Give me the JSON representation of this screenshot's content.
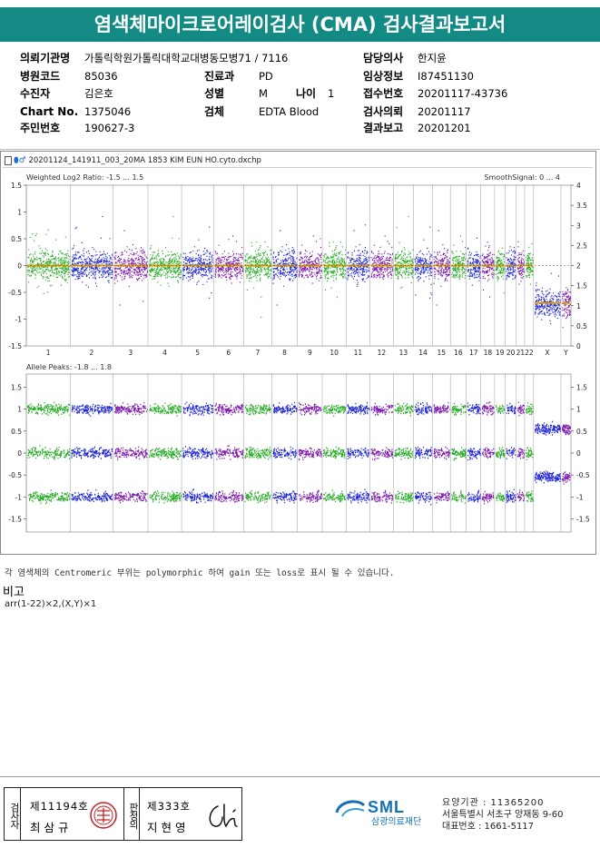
{
  "report": {
    "title": "염색체마이크로어레이검사 (CMA) 검사결과보고서"
  },
  "patient_info": {
    "col1": [
      {
        "label": "의뢰기관명",
        "value": "가톨릭학원가톨릭대학교대병동모병71 / 7116"
      },
      {
        "label": "병원코드",
        "value": "85036"
      },
      {
        "label": "수진자",
        "value": "김은호"
      },
      {
        "label": "Chart No.",
        "value": "1375046"
      },
      {
        "label": "주민번호",
        "value": "190627-3"
      }
    ],
    "col2": [
      {
        "label": "진료과",
        "value": "PD"
      },
      {
        "label": "성별",
        "value": "M"
      },
      {
        "label": "검체",
        "value": "EDTA Blood"
      }
    ],
    "age": {
      "label": "나이",
      "value": "1"
    },
    "col3": [
      {
        "label": "담당의사",
        "value": "한지윤"
      },
      {
        "label": "임상정보",
        "value": "I87451130"
      },
      {
        "label": "접수번호",
        "value": "20201117-43736"
      },
      {
        "label": "검사의뢰",
        "value": "20201117"
      },
      {
        "label": "결과보고",
        "value": "20201201"
      }
    ]
  },
  "cma_figure": {
    "filename": "20201124_141911_003_20MA 1853 KIM EUN HO.cyto.dxchp",
    "top_panel_label": "Weighted Log2 Ratio: -1.5 ... 1.5",
    "top_panel_right_label": "SmoothSignal: 0 ... 4",
    "bottom_panel_label": "Allele Peaks: -1.8 ... 1.8",
    "top_left_ticks": [
      "1.5",
      "1",
      "0.5",
      "0",
      "-0.5",
      "-1",
      "-1.5"
    ],
    "top_right_ticks": [
      "4",
      "3.5",
      "3",
      "2.5",
      "2",
      "1.5",
      "1",
      "0.5",
      "0"
    ],
    "bottom_ticks": [
      "1.5",
      "1",
      "0.5",
      "0",
      "-0.5",
      "-1",
      "-1.5"
    ],
    "chromosome_labels": [
      "1",
      "2",
      "3",
      "4",
      "5",
      "6",
      "7",
      "8",
      "9",
      "10",
      "11",
      "12",
      "13",
      "14",
      "15",
      "16",
      "17",
      "18",
      "19",
      "20",
      "21",
      "22",
      "X",
      "Y"
    ],
    "chromosome_widths": [
      249,
      243,
      198,
      191,
      181,
      171,
      159,
      146,
      141,
      135,
      135,
      133,
      115,
      107,
      102,
      90,
      83,
      78,
      59,
      64,
      47,
      51,
      155,
      57
    ],
    "colors": {
      "green": "#22aa22",
      "blue": "#1b22d6",
      "purple": "#7a17a8",
      "smooth": "#e0a000",
      "plot_bg": "#ffffff"
    },
    "color_cycle": [
      "green",
      "blue",
      "purple",
      "green",
      "blue",
      "purple",
      "green",
      "blue",
      "purple",
      "green",
      "blue",
      "purple",
      "green",
      "blue",
      "purple",
      "green",
      "blue",
      "purple",
      "green",
      "blue",
      "purple",
      "green",
      "blue",
      "purple"
    ]
  },
  "notes": {
    "centromeric": "각 염색체의 Centromeric 부위는 polymorphic 하여 gain 또는 loss로 표시 될 수 있습니다.",
    "remark_title": "비고",
    "remark_text": "arr(1-22)×2,(X,Y)×1"
  },
  "signature": {
    "examiner_label": "검사자",
    "examiner_no": "제11194호",
    "examiner_name": "최삼규",
    "confirmer_label": "판정의",
    "confirmer_no": "제333호",
    "confirmer_name": "지현영"
  },
  "lab": {
    "logo_text": "SML",
    "name": "삼광의료재단",
    "code_line": "요양기관 : 11365200",
    "address": "서울특별시 서초구 양재동 9-60",
    "phone": "대표번호 : 1661-5117"
  }
}
